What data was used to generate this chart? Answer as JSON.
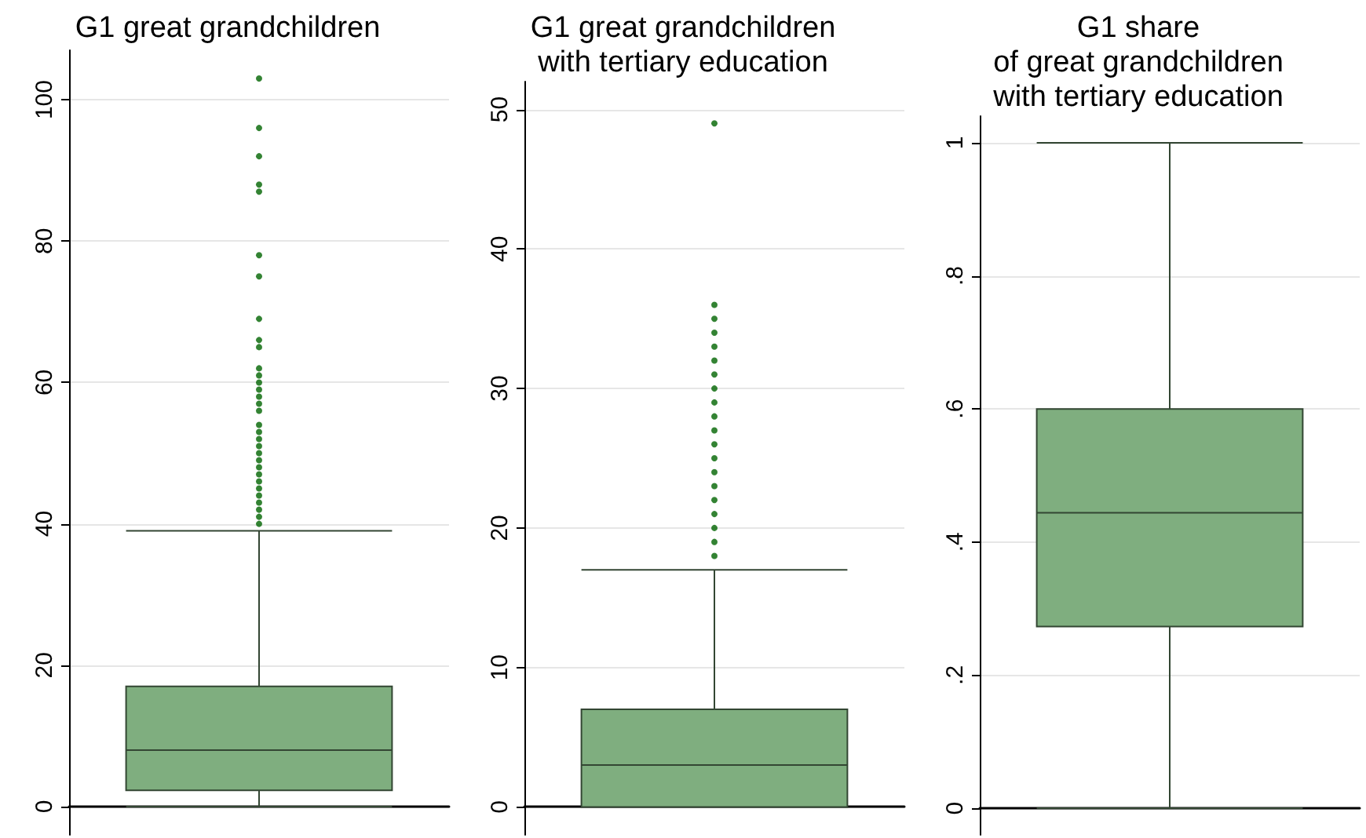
{
  "chart_data": [
    {
      "type": "box",
      "title": "G1 great grandchildren",
      "categories": [
        null
      ],
      "color": "#7fae7f",
      "ylim": [
        -4,
        107
      ],
      "yticks": [
        0,
        20,
        40,
        60,
        80,
        100
      ],
      "grid": "y",
      "tick_labels": "y",
      "boxes": [
        {
          "low": 0,
          "q1": 2.3,
          "median": 8,
          "q3": 17,
          "high": 39,
          "outliers": [
            103,
            96,
            92,
            88,
            87,
            78,
            75,
            69,
            66,
            65,
            62,
            61,
            60,
            59,
            58,
            57,
            56,
            54,
            53,
            52,
            51,
            50,
            49,
            48,
            47,
            46,
            45,
            44,
            43,
            42,
            41,
            40
          ]
        }
      ]
    },
    {
      "type": "box",
      "title": "G1 great grandchildren\nwith tertiary education",
      "categories": [
        null
      ],
      "color": "#7fae7f",
      "ylim": [
        -2,
        52
      ],
      "yticks": [
        0,
        10,
        20,
        30,
        40,
        50
      ],
      "grid": "y",
      "tick_labels": "y",
      "boxes": [
        {
          "low": 0,
          "q1": 0,
          "median": 3,
          "q3": 7,
          "high": 17,
          "outliers": [
            49,
            36,
            35,
            34,
            33,
            32,
            31,
            30,
            29,
            28,
            27,
            26,
            25,
            24,
            23,
            22,
            21,
            20,
            19,
            18
          ]
        }
      ]
    },
    {
      "type": "box",
      "title": "G1 share\nof great grandchildren\nwith tertiary education",
      "categories": [
        null
      ],
      "color": "#7fae7f",
      "ylim": [
        -0.04,
        1.04
      ],
      "yticks": [
        {
          "value": 0,
          "label": "0"
        },
        {
          "value": 0.2,
          "label": ".2"
        },
        {
          "value": 0.4,
          "label": ".4"
        },
        {
          "value": 0.6,
          "label": ".6"
        },
        {
          "value": 0.8,
          "label": ".8"
        },
        {
          "value": 1,
          "label": "1"
        }
      ],
      "grid": "y",
      "tick_labels": "y",
      "boxes": [
        {
          "low": 0,
          "q1": 0.273,
          "median": 0.444,
          "q3": 0.6,
          "high": 1
        }
      ]
    }
  ]
}
